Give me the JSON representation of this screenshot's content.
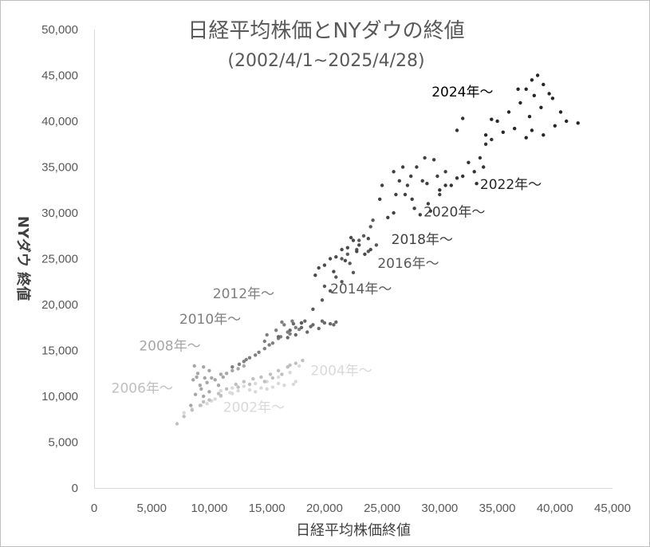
{
  "chart_data": {
    "type": "scatter",
    "title": "日経平均株価とNYダウの終値",
    "subtitle": "(2002/4/1~2025/4/28)",
    "xlabel": "日経平均株価終値",
    "ylabel": "NYダウ 終値",
    "xlim": [
      0,
      45000
    ],
    "ylim": [
      0,
      50000
    ],
    "x_ticks": [
      0,
      5000,
      10000,
      15000,
      20000,
      25000,
      30000,
      35000,
      40000,
      45000
    ],
    "y_ticks": [
      0,
      5000,
      10000,
      15000,
      20000,
      25000,
      30000,
      35000,
      40000,
      45000,
      50000
    ],
    "x_tick_labels": [
      "0",
      "5,000",
      "10,000",
      "15,000",
      "20,000",
      "25,000",
      "30,000",
      "35,000",
      "40,000",
      "45,000"
    ],
    "y_tick_labels": [
      "0",
      "5,000",
      "10,000",
      "15,000",
      "20,000",
      "25,000",
      "30,000",
      "35,000",
      "40,000",
      "45,000",
      "50,000"
    ],
    "grid": false,
    "series": [
      {
        "color": "#d9d9d9",
        "points": [
          [
            7800,
            8200
          ],
          [
            8500,
            8600
          ],
          [
            9300,
            9000
          ],
          [
            10200,
            9500
          ],
          [
            11000,
            10000
          ],
          [
            11800,
            10400
          ],
          [
            12500,
            10600
          ],
          [
            13500,
            10700
          ],
          [
            14500,
            10900
          ],
          [
            15500,
            11000
          ],
          [
            16500,
            11200
          ],
          [
            17300,
            11300
          ],
          [
            11000,
            10600
          ],
          [
            12000,
            10900
          ],
          [
            13000,
            11100
          ],
          [
            14000,
            11400
          ],
          [
            15000,
            11600
          ],
          [
            16000,
            12100
          ],
          [
            17000,
            12600
          ],
          [
            17800,
            13300
          ],
          [
            10500,
            9700
          ],
          [
            9800,
            9200
          ],
          [
            16000,
            11400
          ],
          [
            17500,
            11600
          ],
          [
            15000,
            10800
          ],
          [
            14000,
            10500
          ],
          [
            12000,
            10300
          ]
        ]
      },
      {
        "color": "#bfbfbf",
        "points": [
          [
            7200,
            7000
          ],
          [
            7800,
            7800
          ],
          [
            8500,
            8500
          ],
          [
            9200,
            9000
          ],
          [
            10000,
            9600
          ],
          [
            10800,
            10300
          ],
          [
            11500,
            10800
          ],
          [
            12300,
            11300
          ],
          [
            13000,
            11600
          ],
          [
            13800,
            11900
          ],
          [
            14500,
            12100
          ],
          [
            15300,
            12400
          ],
          [
            16000,
            12800
          ],
          [
            16800,
            13200
          ],
          [
            17500,
            13600
          ],
          [
            18100,
            13900
          ],
          [
            15500,
            12000
          ],
          [
            14800,
            11600
          ],
          [
            13500,
            11300
          ],
          [
            17000,
            13400
          ],
          [
            16300,
            12400
          ],
          [
            12500,
            11000
          ],
          [
            11000,
            10100
          ],
          [
            9500,
            9400
          ]
        ]
      },
      {
        "color": "#a6a6a6",
        "points": [
          [
            8400,
            9000
          ],
          [
            8800,
            10200
          ],
          [
            9200,
            11200
          ],
          [
            9600,
            12000
          ],
          [
            9000,
            12500
          ],
          [
            8700,
            13300
          ],
          [
            9500,
            13200
          ],
          [
            10200,
            12000
          ],
          [
            10800,
            11200
          ],
          [
            10000,
            10500
          ],
          [
            9500,
            10000
          ],
          [
            11000,
            12400
          ],
          [
            11500,
            12500
          ],
          [
            9800,
            11500
          ],
          [
            8600,
            11800
          ],
          [
            9300,
            10800
          ],
          [
            10500,
            11800
          ],
          [
            11200,
            12100
          ],
          [
            12000,
            12800
          ],
          [
            12500,
            13000
          ],
          [
            13000,
            13300
          ],
          [
            10000,
            12800
          ],
          [
            8900,
            12100
          ]
        ]
      },
      {
        "color": "#7f7f7f",
        "points": [
          [
            12000,
            13200
          ],
          [
            13000,
            13800
          ],
          [
            14000,
            14500
          ],
          [
            14800,
            15200
          ],
          [
            15500,
            15800
          ],
          [
            16200,
            16500
          ],
          [
            16800,
            17000
          ],
          [
            17500,
            17500
          ],
          [
            18000,
            18000
          ],
          [
            17000,
            16800
          ],
          [
            16000,
            16300
          ],
          [
            15200,
            15600
          ],
          [
            14300,
            14800
          ],
          [
            13500,
            14200
          ],
          [
            15800,
            17200
          ],
          [
            16500,
            17800
          ],
          [
            17200,
            18200
          ],
          [
            14800,
            16000
          ],
          [
            13200,
            14000
          ],
          [
            12600,
            13500
          ],
          [
            15000,
            16700
          ],
          [
            16300,
            18100
          ],
          [
            17800,
            17300
          ]
        ]
      },
      {
        "color": "#696969",
        "points": [
          [
            16000,
            16500
          ],
          [
            17000,
            17200
          ],
          [
            18000,
            17500
          ],
          [
            19000,
            17800
          ],
          [
            20000,
            18000
          ],
          [
            20800,
            17800
          ],
          [
            19500,
            17400
          ],
          [
            18500,
            17000
          ],
          [
            17500,
            16700
          ],
          [
            20500,
            17900
          ],
          [
            21000,
            18100
          ],
          [
            18800,
            17600
          ],
          [
            16800,
            16400
          ],
          [
            17300,
            17900
          ],
          [
            18300,
            18200
          ],
          [
            19800,
            18200
          ]
        ]
      },
      {
        "color": "#595959",
        "points": [
          [
            18000,
            18000
          ],
          [
            19000,
            19500
          ],
          [
            19800,
            20500
          ],
          [
            20500,
            21500
          ],
          [
            21500,
            22500
          ],
          [
            22200,
            24500
          ],
          [
            22800,
            26000
          ],
          [
            23400,
            27500
          ],
          [
            24000,
            28500
          ],
          [
            21000,
            23000
          ],
          [
            22000,
            25500
          ],
          [
            23000,
            27000
          ],
          [
            24200,
            29200
          ],
          [
            21500,
            25000
          ],
          [
            20000,
            22000
          ],
          [
            23800,
            25800
          ],
          [
            24500,
            26500
          ],
          [
            22500,
            23500
          ]
        ]
      },
      {
        "color": "#4a4a4a",
        "points": [
          [
            19500,
            24000
          ],
          [
            20500,
            25000
          ],
          [
            21500,
            26000
          ],
          [
            22500,
            27000
          ],
          [
            23000,
            26500
          ],
          [
            22000,
            26200
          ],
          [
            21000,
            25200
          ],
          [
            20000,
            24300
          ],
          [
            22800,
            25800
          ],
          [
            23500,
            25500
          ],
          [
            24000,
            26000
          ],
          [
            21800,
            24800
          ],
          [
            22300,
            27300
          ],
          [
            20800,
            23600
          ],
          [
            23800,
            27200
          ],
          [
            19200,
            23200
          ]
        ]
      },
      {
        "color": "#404040",
        "points": [
          [
            26000,
            30000
          ],
          [
            27000,
            32000
          ],
          [
            27500,
            34000
          ],
          [
            28000,
            35000
          ],
          [
            28500,
            33500
          ],
          [
            29000,
            31000
          ],
          [
            26500,
            33500
          ],
          [
            27800,
            30500
          ],
          [
            28700,
            36000
          ],
          [
            29500,
            35800
          ],
          [
            26200,
            32000
          ],
          [
            25500,
            29500
          ],
          [
            27200,
            33000
          ],
          [
            28300,
            29800
          ],
          [
            29800,
            34000
          ],
          [
            30000,
            32000
          ],
          [
            26800,
            35000
          ],
          [
            25000,
            33000
          ],
          [
            27600,
            31500
          ],
          [
            28900,
            33200
          ],
          [
            24800,
            31500
          ],
          [
            26000,
            34500
          ],
          [
            30500,
            34500
          ],
          [
            29200,
            30200
          ]
        ]
      },
      {
        "color": "#333333",
        "points": [
          [
            30000,
            32500
          ],
          [
            31000,
            33000
          ],
          [
            32000,
            34000
          ],
          [
            33000,
            34500
          ],
          [
            33500,
            36000
          ],
          [
            34000,
            37500
          ],
          [
            32500,
            35500
          ],
          [
            31500,
            33800
          ],
          [
            33200,
            33200
          ],
          [
            34500,
            38000
          ],
          [
            32000,
            40300
          ],
          [
            31500,
            39000
          ],
          [
            30500,
            33000
          ],
          [
            33800,
            35000
          ]
        ]
      },
      {
        "color": "#262626",
        "points": [
          [
            34000,
            38500
          ],
          [
            35000,
            40000
          ],
          [
            36000,
            41000
          ],
          [
            37000,
            42000
          ],
          [
            37500,
            43500
          ],
          [
            38000,
            44500
          ],
          [
            38500,
            45000
          ],
          [
            39000,
            44000
          ],
          [
            39500,
            43000
          ],
          [
            38000,
            39000
          ],
          [
            39000,
            38500
          ],
          [
            40000,
            39500
          ],
          [
            41000,
            40000
          ],
          [
            42000,
            39800
          ],
          [
            37500,
            38200
          ],
          [
            36500,
            39200
          ],
          [
            35500,
            38800
          ],
          [
            38800,
            41500
          ],
          [
            37800,
            40500
          ],
          [
            39800,
            42500
          ],
          [
            40500,
            41000
          ],
          [
            36800,
            43500
          ],
          [
            38200,
            42800
          ],
          [
            34500,
            40200
          ]
        ]
      }
    ],
    "annotations": [
      {
        "text": "2002年～",
        "x": 11200,
        "y": 8300,
        "color": "#d9d9d9"
      },
      {
        "text": "2004年～",
        "x": 18800,
        "y": 12300,
        "color": "#d9d9d9"
      },
      {
        "text": "2006年～",
        "x": 1500,
        "y": 10400,
        "color": "#bfbfbf"
      },
      {
        "text": "2008年～",
        "x": 3900,
        "y": 15000,
        "color": "#a6a6a6"
      },
      {
        "text": "2010年～",
        "x": 7400,
        "y": 17900,
        "color": "#7f7f7f"
      },
      {
        "text": "2012年～",
        "x": 10300,
        "y": 20700,
        "color": "#7f7f7f"
      },
      {
        "text": "2014年～",
        "x": 20500,
        "y": 21200,
        "color": "#595959"
      },
      {
        "text": "2016年～",
        "x": 24600,
        "y": 24000,
        "color": "#595959"
      },
      {
        "text": "2018年～",
        "x": 25800,
        "y": 26600,
        "color": "#404040"
      },
      {
        "text": "2020年～",
        "x": 28600,
        "y": 29600,
        "color": "#404040"
      },
      {
        "text": "2022年～",
        "x": 33500,
        "y": 32600,
        "color": "#262626"
      },
      {
        "text": "2024年～",
        "x": 29300,
        "y": 42700,
        "color": "#000000"
      }
    ]
  }
}
